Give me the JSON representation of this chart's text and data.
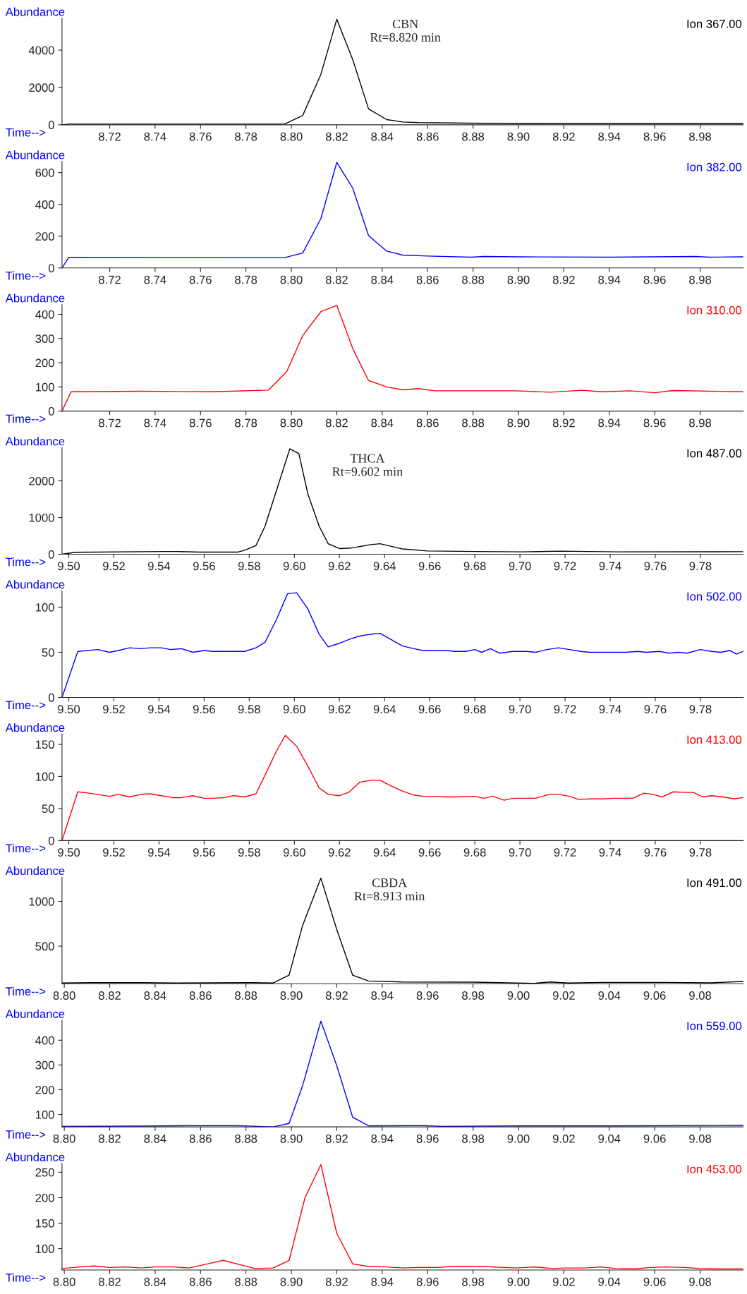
{
  "chart_data": [
    {
      "type": "line",
      "xlabel": "Time-->",
      "ylabel": "Abundance",
      "xlim": [
        8.699,
        8.999
      ],
      "ylim": [
        0,
        5700
      ],
      "yticks": [
        0,
        2000,
        4000
      ],
      "xticks": [
        {
          "value": 8.72,
          "label": "8.72"
        },
        {
          "value": 8.74,
          "label": "8.74"
        },
        {
          "value": 8.76,
          "label": "8.76"
        },
        {
          "value": 8.78,
          "label": "8.78"
        },
        {
          "value": 8.8,
          "label": "8.80"
        },
        {
          "value": 8.82,
          "label": "8.82"
        },
        {
          "value": 8.84,
          "label": "8.84"
        },
        {
          "value": 8.86,
          "label": "8.86"
        },
        {
          "value": 8.88,
          "label": "8.88"
        },
        {
          "value": 8.9,
          "label": "8.90"
        },
        {
          "value": 8.92,
          "label": "8.92"
        },
        {
          "value": 8.94,
          "label": "8.94"
        },
        {
          "value": 8.96,
          "label": "8.96"
        },
        {
          "value": 8.98,
          "label": "8.98"
        }
      ],
      "annotations": [
        {
          "text": "CBN\nRt=8.820 min",
          "x": 8.82,
          "y": 5650
        }
      ],
      "series": [
        {
          "name": "Ion 367.00",
          "color": "#000000",
          "x": [
            8.699,
            8.702,
            8.797,
            8.805,
            8.813,
            8.82,
            8.827,
            8.834,
            8.842,
            8.849,
            8.856,
            8.87,
            8.891,
            8.922,
            8.999
          ],
          "values": [
            0,
            40,
            40,
            500,
            2700,
            5650,
            3500,
            850,
            280,
            150,
            120,
            100,
            70,
            60,
            60
          ]
        }
      ]
    },
    {
      "type": "line",
      "xlabel": "Time-->",
      "ylabel": "Abundance",
      "xlim": [
        8.699,
        8.999
      ],
      "ylim": [
        0,
        670
      ],
      "yticks": [
        0,
        200,
        400,
        600
      ],
      "xticks": [
        {
          "value": 8.72,
          "label": "8.72"
        },
        {
          "value": 8.74,
          "label": "8.74"
        },
        {
          "value": 8.76,
          "label": "8.76"
        },
        {
          "value": 8.78,
          "label": "8.78"
        },
        {
          "value": 8.8,
          "label": "8.80"
        },
        {
          "value": 8.82,
          "label": "8.82"
        },
        {
          "value": 8.84,
          "label": "8.84"
        },
        {
          "value": 8.86,
          "label": "8.86"
        },
        {
          "value": 8.88,
          "label": "8.88"
        },
        {
          "value": 8.9,
          "label": "8.90"
        },
        {
          "value": 8.92,
          "label": "8.92"
        },
        {
          "value": 8.94,
          "label": "8.94"
        },
        {
          "value": 8.96,
          "label": "8.96"
        },
        {
          "value": 8.98,
          "label": "8.98"
        }
      ],
      "series": [
        {
          "name": "Ion 382.00",
          "color": "#0000ff",
          "x": [
            8.699,
            8.702,
            8.797,
            8.805,
            8.813,
            8.82,
            8.827,
            8.834,
            8.842,
            8.849,
            8.86,
            8.879,
            8.885,
            8.9,
            8.94,
            8.978,
            8.984,
            8.999
          ],
          "values": [
            0,
            67,
            65,
            94,
            311,
            664,
            503,
            203,
            106,
            81,
            75,
            68,
            72,
            70,
            68,
            72,
            68,
            70
          ]
        }
      ]
    },
    {
      "type": "line",
      "xlabel": "Time-->",
      "ylabel": "Abundance",
      "xlim": [
        8.699,
        8.999
      ],
      "ylim": [
        0,
        440
      ],
      "yticks": [
        0,
        100,
        200,
        300,
        400
      ],
      "xticks": [
        {
          "value": 8.72,
          "label": "8.72"
        },
        {
          "value": 8.74,
          "label": "8.74"
        },
        {
          "value": 8.76,
          "label": "8.76"
        },
        {
          "value": 8.78,
          "label": "8.78"
        },
        {
          "value": 8.8,
          "label": "8.80"
        },
        {
          "value": 8.82,
          "label": "8.82"
        },
        {
          "value": 8.84,
          "label": "8.84"
        },
        {
          "value": 8.86,
          "label": "8.86"
        },
        {
          "value": 8.88,
          "label": "8.88"
        },
        {
          "value": 8.9,
          "label": "8.90"
        },
        {
          "value": 8.92,
          "label": "8.92"
        },
        {
          "value": 8.94,
          "label": "8.94"
        },
        {
          "value": 8.96,
          "label": "8.96"
        },
        {
          "value": 8.98,
          "label": "8.98"
        }
      ],
      "series": [
        {
          "name": "Ion 310.00",
          "color": "#ff0000",
          "x": [
            8.699,
            8.703,
            8.734,
            8.765,
            8.79,
            8.798,
            8.805,
            8.813,
            8.82,
            8.827,
            8.834,
            8.842,
            8.849,
            8.856,
            8.863,
            8.899,
            8.914,
            8.928,
            8.937,
            8.949,
            8.96,
            8.968,
            8.999
          ],
          "values": [
            0,
            80,
            82,
            80,
            87,
            164,
            312,
            411,
            437,
            259,
            126,
            100,
            88,
            93,
            84,
            84,
            78,
            86,
            80,
            84,
            76,
            85,
            80
          ]
        }
      ]
    },
    {
      "type": "line",
      "xlabel": "Time-->",
      "ylabel": "Abundance",
      "xlim": [
        9.497,
        9.799
      ],
      "ylim": [
        0,
        2900
      ],
      "yticks": [
        0,
        1000,
        2000
      ],
      "xticks": [
        {
          "value": 9.5,
          "label": "9.50"
        },
        {
          "value": 9.52,
          "label": "9.52"
        },
        {
          "value": 9.54,
          "label": "9.54"
        },
        {
          "value": 9.56,
          "label": "9.56"
        },
        {
          "value": 9.58,
          "label": "9.58"
        },
        {
          "value": 9.6,
          "label": "9.60"
        },
        {
          "value": 9.62,
          "label": "9.62"
        },
        {
          "value": 9.64,
          "label": "9.64"
        },
        {
          "value": 9.66,
          "label": "9.66"
        },
        {
          "value": 9.68,
          "label": "9.68"
        },
        {
          "value": 9.7,
          "label": "9.70"
        },
        {
          "value": 9.72,
          "label": "9.72"
        },
        {
          "value": 9.74,
          "label": "9.74"
        },
        {
          "value": 9.76,
          "label": "9.76"
        },
        {
          "value": 9.78,
          "label": "9.78"
        }
      ],
      "annotations": [
        {
          "text": "THCA\nRt=9.602 min",
          "x": 9.602,
          "y": 2742
        }
      ],
      "series": [
        {
          "name": "Ion 487.00",
          "color": "#000000",
          "x": [
            9.497,
            9.503,
            9.543,
            9.548,
            9.558,
            9.575,
            9.578,
            9.583,
            9.587,
            9.598,
            9.602,
            9.606,
            9.611,
            9.615,
            9.62,
            9.625,
            9.634,
            9.638,
            9.648,
            9.659,
            9.68,
            9.701,
            9.718,
            9.743,
            9.799
          ],
          "values": [
            0,
            55,
            75,
            75,
            60,
            60,
            108,
            240,
            766,
            2874,
            2742,
            1640,
            766,
            287,
            156,
            168,
            263,
            287,
            144,
            90,
            75,
            65,
            85,
            65,
            70
          ]
        }
      ]
    },
    {
      "type": "line",
      "xlabel": "Time-->",
      "ylabel": "Abundance",
      "xlim": [
        9.497,
        9.799
      ],
      "ylim": [
        0,
        118
      ],
      "yticks": [
        0,
        50,
        100
      ],
      "xticks": [
        {
          "value": 9.5,
          "label": "9.50"
        },
        {
          "value": 9.52,
          "label": "9.52"
        },
        {
          "value": 9.54,
          "label": "9.54"
        },
        {
          "value": 9.56,
          "label": "9.56"
        },
        {
          "value": 9.58,
          "label": "9.58"
        },
        {
          "value": 9.6,
          "label": "9.60"
        },
        {
          "value": 9.62,
          "label": "9.62"
        },
        {
          "value": 9.64,
          "label": "9.64"
        },
        {
          "value": 9.66,
          "label": "9.66"
        },
        {
          "value": 9.68,
          "label": "9.68"
        },
        {
          "value": 9.7,
          "label": "9.70"
        },
        {
          "value": 9.72,
          "label": "9.72"
        },
        {
          "value": 9.74,
          "label": "9.74"
        },
        {
          "value": 9.76,
          "label": "9.76"
        },
        {
          "value": 9.78,
          "label": "9.78"
        }
      ],
      "series": [
        {
          "name": "Ion 502.00",
          "color": "#0000ff",
          "x": [
            9.497,
            9.504,
            9.513,
            9.518,
            9.522,
            9.527,
            9.532,
            9.536,
            9.541,
            9.545,
            9.55,
            9.555,
            9.56,
            9.564,
            9.578,
            9.583,
            9.587,
            9.592,
            9.597,
            9.601,
            9.606,
            9.611,
            9.615,
            9.62,
            9.625,
            9.629,
            9.634,
            9.638,
            9.643,
            9.648,
            9.653,
            9.657,
            9.668,
            9.671,
            9.676,
            9.68,
            9.683,
            9.687,
            9.691,
            9.697,
            9.703,
            9.707,
            9.712,
            9.717,
            9.722,
            9.727,
            9.731,
            9.747,
            9.752,
            9.756,
            9.762,
            9.766,
            9.77,
            9.774,
            9.78,
            9.785,
            9.789,
            9.793,
            9.796,
            9.799
          ],
          "values": [
            0,
            51,
            53,
            50,
            52,
            55,
            54,
            55,
            55,
            53,
            54,
            50,
            52,
            51,
            51,
            55,
            61,
            86,
            115,
            116,
            98,
            70,
            56,
            60,
            65,
            68,
            70,
            71,
            64,
            57,
            54,
            52,
            52,
            51,
            51,
            53,
            50,
            54,
            49,
            51,
            51,
            50,
            53,
            55,
            53,
            51,
            50,
            50,
            51,
            50,
            51,
            49,
            50,
            49,
            53,
            51,
            50,
            52,
            48,
            51
          ]
        }
      ]
    },
    {
      "type": "line",
      "xlabel": "Time-->",
      "ylabel": "Abundance",
      "xlim": [
        9.497,
        9.799
      ],
      "ylim": [
        0,
        166
      ],
      "yticks": [
        0,
        50,
        100,
        150
      ],
      "xticks": [
        {
          "value": 9.5,
          "label": "9.50"
        },
        {
          "value": 9.52,
          "label": "9.52"
        },
        {
          "value": 9.54,
          "label": "9.54"
        },
        {
          "value": 9.56,
          "label": "9.56"
        },
        {
          "value": 9.58,
          "label": "9.58"
        },
        {
          "value": 9.6,
          "label": "9.60"
        },
        {
          "value": 9.62,
          "label": "9.62"
        },
        {
          "value": 9.64,
          "label": "9.64"
        },
        {
          "value": 9.66,
          "label": "9.66"
        },
        {
          "value": 9.68,
          "label": "9.68"
        },
        {
          "value": 9.7,
          "label": "9.70"
        },
        {
          "value": 9.72,
          "label": "9.72"
        },
        {
          "value": 9.74,
          "label": "9.74"
        },
        {
          "value": 9.76,
          "label": "9.76"
        },
        {
          "value": 9.78,
          "label": "9.78"
        }
      ],
      "series": [
        {
          "name": "Ion 413.00",
          "color": "#ff0000",
          "x": [
            9.497,
            9.504,
            9.509,
            9.518,
            9.522,
            9.527,
            9.532,
            9.536,
            9.541,
            9.546,
            9.55,
            9.555,
            9.56,
            9.564,
            9.569,
            9.573,
            9.578,
            9.583,
            9.587,
            9.592,
            9.596,
            9.601,
            9.606,
            9.611,
            9.615,
            9.62,
            9.624,
            9.629,
            9.634,
            9.638,
            9.643,
            9.648,
            9.653,
            9.657,
            9.662,
            9.667,
            9.671,
            9.68,
            9.684,
            9.688,
            9.693,
            9.697,
            9.701,
            9.707,
            9.713,
            9.717,
            9.722,
            9.726,
            9.731,
            9.737,
            9.741,
            9.745,
            9.75,
            9.755,
            9.759,
            9.763,
            9.768,
            9.773,
            9.777,
            9.781,
            9.785,
            9.79,
            9.795,
            9.799
          ],
          "values": [
            0,
            76,
            74,
            69,
            72,
            68,
            72,
            73,
            70,
            67,
            67,
            70,
            66,
            66,
            67,
            70,
            68,
            73,
            102,
            139,
            164,
            147,
            116,
            82,
            72,
            70,
            75,
            91,
            94,
            94,
            85,
            77,
            71,
            69,
            69,
            68,
            68,
            69,
            66,
            69,
            63,
            66,
            66,
            66,
            72,
            72,
            69,
            64,
            65,
            65,
            66,
            66,
            66,
            74,
            72,
            68,
            76,
            75,
            75,
            68,
            70,
            68,
            65,
            67
          ]
        }
      ]
    },
    {
      "type": "line",
      "xlabel": "Time-->",
      "ylabel": "Abundance",
      "xlim": [
        8.799,
        9.099
      ],
      "ylim": [
        80,
        1270
      ],
      "yticks": [
        500,
        1000
      ],
      "xticks": [
        {
          "value": 8.8,
          "label": "8.80"
        },
        {
          "value": 8.82,
          "label": "8.82"
        },
        {
          "value": 8.84,
          "label": "8.84"
        },
        {
          "value": 8.86,
          "label": "8.86"
        },
        {
          "value": 8.88,
          "label": "8.88"
        },
        {
          "value": 8.9,
          "label": "8.90"
        },
        {
          "value": 8.92,
          "label": "8.92"
        },
        {
          "value": 8.94,
          "label": "8.94"
        },
        {
          "value": 8.96,
          "label": "8.96"
        },
        {
          "value": 8.98,
          "label": "8.98"
        },
        {
          "value": 9.0,
          "label": "9.00"
        },
        {
          "value": 9.02,
          "label": "9.02"
        },
        {
          "value": 9.04,
          "label": "9.04"
        },
        {
          "value": 9.06,
          "label": "9.06"
        },
        {
          "value": 9.08,
          "label": "9.08"
        }
      ],
      "annotations": [
        {
          "text": "CBDA\nRt=8.913 min",
          "x": 8.913,
          "y": 1260
        }
      ],
      "series": [
        {
          "name": "Ion 491.00",
          "color": "#000000",
          "x": [
            8.799,
            8.813,
            8.834,
            8.849,
            8.865,
            8.882,
            8.892,
            8.899,
            8.905,
            8.913,
            8.92,
            8.927,
            8.934,
            8.949,
            8.98,
            9.007,
            9.014,
            9.022,
            9.037,
            9.064,
            9.085,
            9.099
          ],
          "values": [
            88,
            92,
            92,
            88,
            90,
            92,
            88,
            175,
            735,
            1260,
            685,
            175,
            110,
            100,
            98,
            85,
            100,
            88,
            95,
            95,
            90,
            105
          ]
        }
      ]
    },
    {
      "type": "line",
      "xlabel": "Time-->",
      "ylabel": "Abundance",
      "xlim": [
        8.799,
        9.099
      ],
      "ylim": [
        50,
        480
      ],
      "yticks": [
        100,
        200,
        300,
        400
      ],
      "xticks": [
        {
          "value": 8.8,
          "label": "8.80"
        },
        {
          "value": 8.82,
          "label": "8.82"
        },
        {
          "value": 8.84,
          "label": "8.84"
        },
        {
          "value": 8.86,
          "label": "8.86"
        },
        {
          "value": 8.88,
          "label": "8.88"
        },
        {
          "value": 8.9,
          "label": "8.90"
        },
        {
          "value": 8.92,
          "label": "8.92"
        },
        {
          "value": 8.94,
          "label": "8.94"
        },
        {
          "value": 8.96,
          "label": "8.96"
        },
        {
          "value": 8.98,
          "label": "8.98"
        },
        {
          "value": 9.0,
          "label": "9.00"
        },
        {
          "value": 9.02,
          "label": "9.02"
        },
        {
          "value": 9.04,
          "label": "9.04"
        },
        {
          "value": 9.06,
          "label": "9.06"
        },
        {
          "value": 9.08,
          "label": "9.08"
        }
      ],
      "series": [
        {
          "name": "Ion 559.00",
          "color": "#0000ff",
          "x": [
            8.799,
            8.834,
            8.855,
            8.876,
            8.892,
            8.899,
            8.905,
            8.913,
            8.92,
            8.927,
            8.934,
            8.949,
            8.959,
            8.966,
            9.001,
            9.043,
            9.099
          ],
          "values": [
            52,
            53,
            55,
            55,
            50,
            64,
            218,
            477,
            297,
            89,
            54,
            55,
            55,
            52,
            54,
            54,
            56
          ]
        }
      ]
    },
    {
      "type": "line",
      "xlabel": "Time-->",
      "ylabel": "Abundance",
      "xlim": [
        8.799,
        9.099
      ],
      "ylim": [
        58,
        267
      ],
      "yticks": [
        100,
        150,
        200,
        250
      ],
      "xticks": [
        {
          "value": 8.8,
          "label": "8.80"
        },
        {
          "value": 8.82,
          "label": "8.82"
        },
        {
          "value": 8.84,
          "label": "8.84"
        },
        {
          "value": 8.86,
          "label": "8.86"
        },
        {
          "value": 8.88,
          "label": "8.88"
        },
        {
          "value": 8.9,
          "label": "8.90"
        },
        {
          "value": 8.92,
          "label": "8.92"
        },
        {
          "value": 8.94,
          "label": "8.94"
        },
        {
          "value": 8.96,
          "label": "8.96"
        },
        {
          "value": 8.98,
          "label": "8.98"
        },
        {
          "value": 9.0,
          "label": "9.00"
        },
        {
          "value": 9.02,
          "label": "9.02"
        },
        {
          "value": 9.04,
          "label": "9.04"
        },
        {
          "value": 9.06,
          "label": "9.06"
        },
        {
          "value": 9.08,
          "label": "9.08"
        }
      ],
      "series": [
        {
          "name": "Ion 453.00",
          "color": "#ff0000",
          "x": [
            8.799,
            8.807,
            8.813,
            8.82,
            8.827,
            8.834,
            8.84,
            8.848,
            8.855,
            8.863,
            8.87,
            8.877,
            8.884,
            8.892,
            8.899,
            8.906,
            8.913,
            8.92,
            8.927,
            8.934,
            8.942,
            8.949,
            8.956,
            8.964,
            8.971,
            8.984,
            8.993,
            8.999,
            9.007,
            9.015,
            9.021,
            9.029,
            9.036,
            9.043,
            9.051,
            9.058,
            9.065,
            9.073,
            9.08,
            9.087,
            9.099
          ],
          "values": [
            61,
            64,
            66,
            63,
            64,
            62,
            64,
            64,
            62,
            70,
            77,
            69,
            61,
            62,
            77,
            200,
            265,
            130,
            70,
            65,
            64,
            62,
            63,
            63,
            65,
            65,
            63,
            62,
            64,
            61,
            62,
            62,
            64,
            61,
            60,
            63,
            64,
            63,
            61,
            60,
            60
          ]
        }
      ]
    }
  ]
}
